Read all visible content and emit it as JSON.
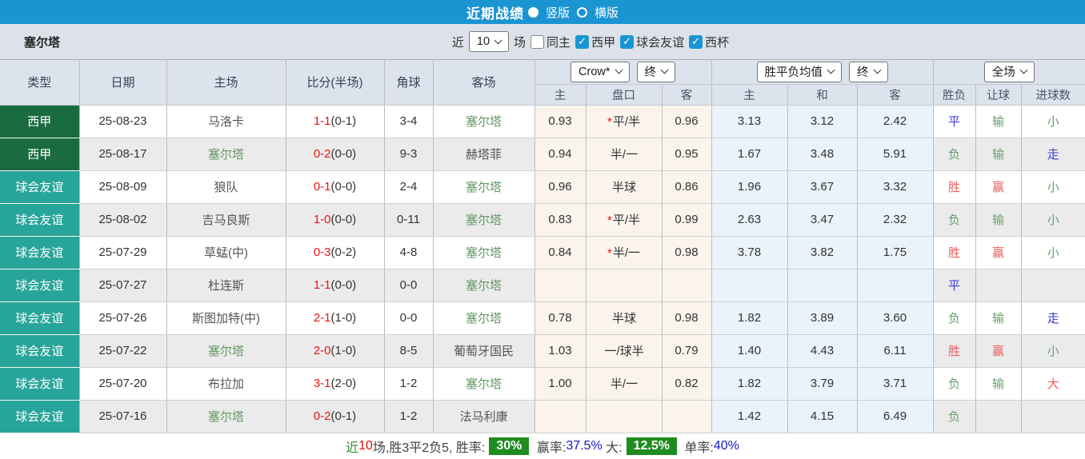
{
  "titlebar": {
    "title": "近期战绩",
    "radio_vertical": "竖版",
    "radio_horizontal": "横版"
  },
  "filterbar": {
    "team": "塞尔塔",
    "near_label": "近",
    "count_value": "10",
    "games_label": "场",
    "checkboxes": [
      {
        "label": "同主",
        "state_class": "off",
        "tick": ""
      },
      {
        "label": "西甲",
        "state_class": "on",
        "tick": "✓"
      },
      {
        "label": "球会友谊",
        "state_class": "on",
        "tick": "✓"
      },
      {
        "label": "西杯",
        "state_class": "on",
        "tick": "✓"
      }
    ]
  },
  "table": {
    "headers": [
      "类型",
      "日期",
      "主场",
      "比分(半场)",
      "角球",
      "客场"
    ],
    "selects": {
      "odds_company": "Crow*",
      "odds_stage": "终",
      "avg_type": "胜平负均值",
      "avg_stage": "终",
      "scope": "全场"
    },
    "subheaders": [
      "主",
      "盘口",
      "客",
      "主",
      "和",
      "客",
      "胜负",
      "让球",
      "进球数"
    ],
    "rows": [
      {
        "type": "西甲",
        "type_class": "t-liga",
        "date": "25-08-23",
        "home": "马洛卡",
        "home_class": "",
        "score_ft": "1-1",
        "score_ht": "(0-1)",
        "corners": "3-4",
        "away": "塞尔塔",
        "away_class": "focus",
        "odds_home": "0.93",
        "handicap_star": "*",
        "handicap": "平/半",
        "odds_away": "0.96",
        "avg_home": "3.13",
        "avg_draw": "3.12",
        "avg_away": "2.42",
        "outcome": "平",
        "outcome_class": "r-blue",
        "handicap_res": "输",
        "handicap_res_class": "r-green",
        "goals": "小",
        "goals_class": "r-green"
      },
      {
        "type": "西甲",
        "type_class": "t-liga",
        "date": "25-08-17",
        "home": "塞尔塔",
        "home_class": "focus",
        "score_ft": "0-2",
        "score_ht": "(0-0)",
        "corners": "9-3",
        "away": "赫塔菲",
        "away_class": "",
        "odds_home": "0.94",
        "handicap_star": "",
        "handicap": "半/一",
        "odds_away": "0.95",
        "avg_home": "1.67",
        "avg_draw": "3.48",
        "avg_away": "5.91",
        "outcome": "负",
        "outcome_class": "r-green",
        "handicap_res": "输",
        "handicap_res_class": "r-green",
        "goals": "走",
        "goals_class": "r-blue"
      },
      {
        "type": "球会友谊",
        "type_class": "t-fri",
        "date": "25-08-09",
        "home": "狼队",
        "home_class": "",
        "score_ft": "0-1",
        "score_ht": "(0-0)",
        "corners": "2-4",
        "away": "塞尔塔",
        "away_class": "focus",
        "odds_home": "0.96",
        "handicap_star": "",
        "handicap": "半球",
        "odds_away": "0.86",
        "avg_home": "1.96",
        "avg_draw": "3.67",
        "avg_away": "3.32",
        "outcome": "胜",
        "outcome_class": "r-red",
        "handicap_res": "赢",
        "handicap_res_class": "r-red",
        "goals": "小",
        "goals_class": "r-green"
      },
      {
        "type": "球会友谊",
        "type_class": "t-fri",
        "date": "25-08-02",
        "home": "吉马良斯",
        "home_class": "",
        "score_ft": "1-0",
        "score_ht": "(0-0)",
        "corners": "0-11",
        "away": "塞尔塔",
        "away_class": "focus",
        "odds_home": "0.83",
        "handicap_star": "*",
        "handicap": "平/半",
        "odds_away": "0.99",
        "avg_home": "2.63",
        "avg_draw": "3.47",
        "avg_away": "2.32",
        "outcome": "负",
        "outcome_class": "r-green",
        "handicap_res": "输",
        "handicap_res_class": "r-green",
        "goals": "小",
        "goals_class": "r-green"
      },
      {
        "type": "球会友谊",
        "type_class": "t-fri",
        "date": "25-07-29",
        "home": "草蜢(中)",
        "home_class": "",
        "score_ft": "0-3",
        "score_ht": "(0-2)",
        "corners": "4-8",
        "away": "塞尔塔",
        "away_class": "focus",
        "odds_home": "0.84",
        "handicap_star": "*",
        "handicap": "半/一",
        "odds_away": "0.98",
        "avg_home": "3.78",
        "avg_draw": "3.82",
        "avg_away": "1.75",
        "outcome": "胜",
        "outcome_class": "r-red",
        "handicap_res": "赢",
        "handicap_res_class": "r-red",
        "goals": "小",
        "goals_class": "r-green"
      },
      {
        "type": "球会友谊",
        "type_class": "t-fri",
        "date": "25-07-27",
        "home": "杜连斯",
        "home_class": "",
        "score_ft": "1-1",
        "score_ht": "(0-0)",
        "corners": "0-0",
        "away": "塞尔塔",
        "away_class": "focus",
        "odds_home": "",
        "handicap_star": "",
        "handicap": "",
        "odds_away": "",
        "avg_home": "",
        "avg_draw": "",
        "avg_away": "",
        "outcome": "平",
        "outcome_class": "r-blue",
        "handicap_res": "",
        "handicap_res_class": "",
        "goals": "",
        "goals_class": ""
      },
      {
        "type": "球会友谊",
        "type_class": "t-fri",
        "date": "25-07-26",
        "home": "斯图加特(中)",
        "home_class": "",
        "score_ft": "2-1",
        "score_ht": "(1-0)",
        "corners": "0-0",
        "away": "塞尔塔",
        "away_class": "focus",
        "odds_home": "0.78",
        "handicap_star": "",
        "handicap": "半球",
        "odds_away": "0.98",
        "avg_home": "1.82",
        "avg_draw": "3.89",
        "avg_away": "3.60",
        "outcome": "负",
        "outcome_class": "r-green",
        "handicap_res": "输",
        "handicap_res_class": "r-green",
        "goals": "走",
        "goals_class": "r-blue"
      },
      {
        "type": "球会友谊",
        "type_class": "t-fri",
        "date": "25-07-22",
        "home": "塞尔塔",
        "home_class": "focus",
        "score_ft": "2-0",
        "score_ht": "(1-0)",
        "corners": "8-5",
        "away": "葡萄牙国民",
        "away_class": "",
        "odds_home": "1.03",
        "handicap_star": "",
        "handicap": "一/球半",
        "odds_away": "0.79",
        "avg_home": "1.40",
        "avg_draw": "4.43",
        "avg_away": "6.11",
        "outcome": "胜",
        "outcome_class": "r-red",
        "handicap_res": "赢",
        "handicap_res_class": "r-red",
        "goals": "小",
        "goals_class": "r-green"
      },
      {
        "type": "球会友谊",
        "type_class": "t-fri",
        "date": "25-07-20",
        "home": "布拉加",
        "home_class": "",
        "score_ft": "3-1",
        "score_ht": "(2-0)",
        "corners": "1-2",
        "away": "塞尔塔",
        "away_class": "focus",
        "odds_home": "1.00",
        "handicap_star": "",
        "handicap": "半/一",
        "odds_away": "0.82",
        "avg_home": "1.82",
        "avg_draw": "3.79",
        "avg_away": "3.71",
        "outcome": "负",
        "outcome_class": "r-green",
        "handicap_res": "输",
        "handicap_res_class": "r-green",
        "goals": "大",
        "goals_class": "r-red"
      },
      {
        "type": "球会友谊",
        "type_class": "t-fri",
        "date": "25-07-16",
        "home": "塞尔塔",
        "home_class": "focus",
        "score_ft": "0-2",
        "score_ht": "(0-1)",
        "corners": "1-2",
        "away": "法马利康",
        "away_class": "",
        "odds_home": "",
        "handicap_star": "",
        "handicap": "",
        "odds_away": "",
        "avg_home": "1.42",
        "avg_draw": "4.15",
        "avg_away": "6.49",
        "outcome": "负",
        "outcome_class": "r-green",
        "handicap_res": "",
        "handicap_res_class": "",
        "goals": "",
        "goals_class": ""
      }
    ]
  },
  "footer": {
    "segments": [
      {
        "t": "近",
        "cls": "f-green"
      },
      {
        "t": "10",
        "cls": "f-red"
      },
      {
        "t": "场,胜3平2负5, 胜率:",
        "cls": "f-dark"
      },
      {
        "t": "30%",
        "cls": "f-badge"
      },
      {
        "t": " 赢率:",
        "cls": "f-dark"
      },
      {
        "t": "37.5%",
        "cls": "f-blue"
      },
      {
        "t": " 大:",
        "cls": "f-dark"
      },
      {
        "t": "12.5%",
        "cls": "f-badge"
      },
      {
        "t": " 单率:",
        "cls": "f-dark"
      },
      {
        "t": "40%",
        "cls": "f-blue"
      }
    ]
  }
}
